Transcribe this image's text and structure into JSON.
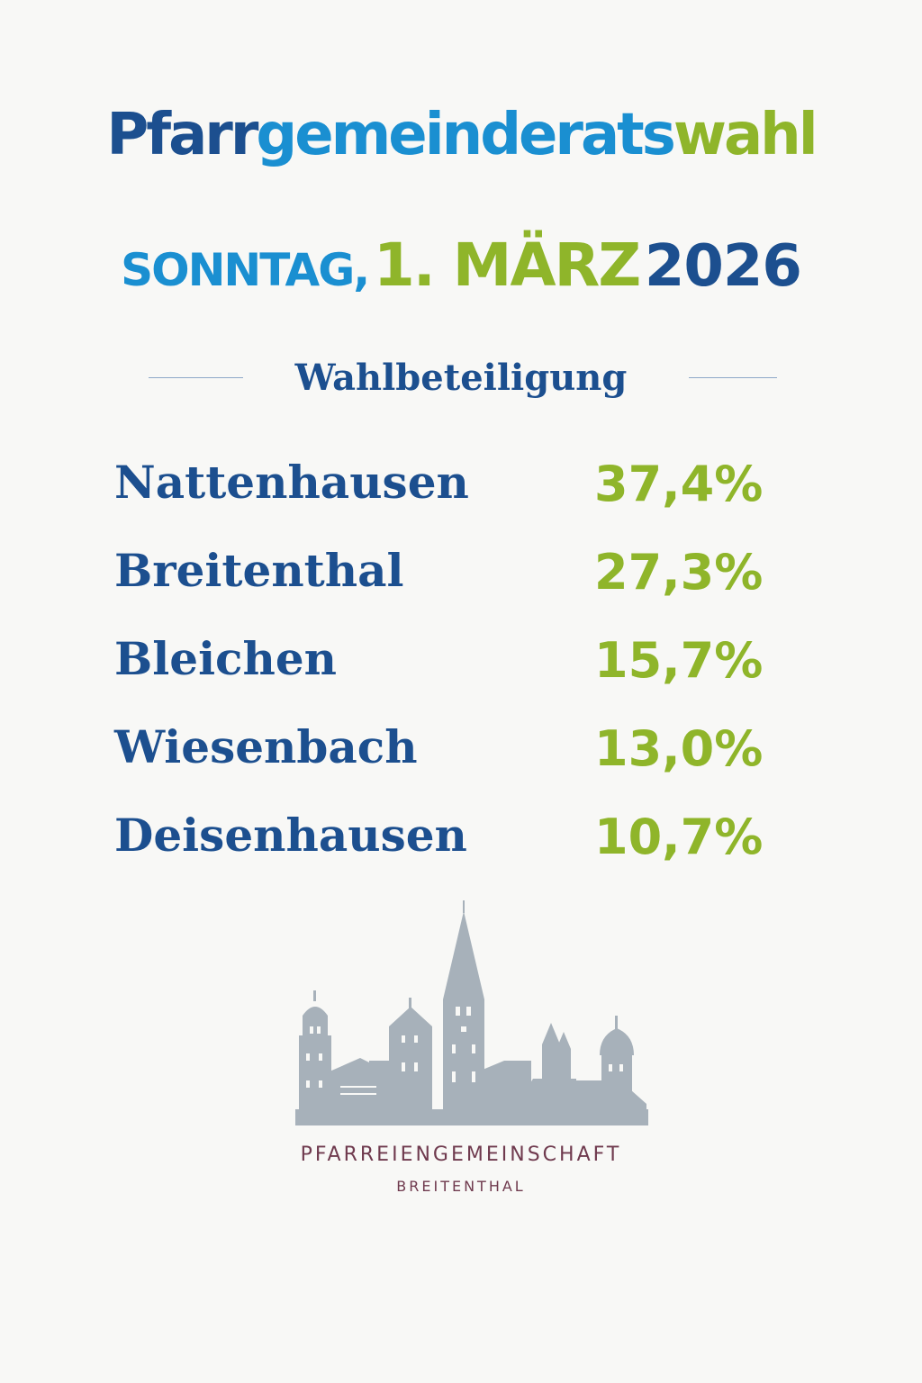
{
  "title": {
    "part1": "Pfarr",
    "part2": "gemeinderats",
    "part3": "wahl"
  },
  "date": {
    "weekday": "SONNTAG,",
    "day_month": "1. MÄRZ",
    "year": "2026"
  },
  "subheading": "Wahlbeteiligung",
  "results": [
    {
      "place": "Nattenhausen",
      "turnout": "37,4%"
    },
    {
      "place": "Breitenthal",
      "turnout": "27,3%"
    },
    {
      "place": "Bleichen",
      "turnout": "15,7%"
    },
    {
      "place": "Wiesenbach",
      "turnout": "13,0%"
    },
    {
      "place": "Deisenhausen",
      "turnout": "10,7%"
    }
  ],
  "footer": {
    "organization": "PFARREIENGEMEINSCHAFT",
    "location": "BREITENTHAL"
  },
  "colors": {
    "dark_blue": "#1c4f8f",
    "light_blue": "#1a8fd1",
    "green": "#8fb52a",
    "skyline_gray": "#a7b1ba",
    "footer_text": "#6f3a4e"
  }
}
